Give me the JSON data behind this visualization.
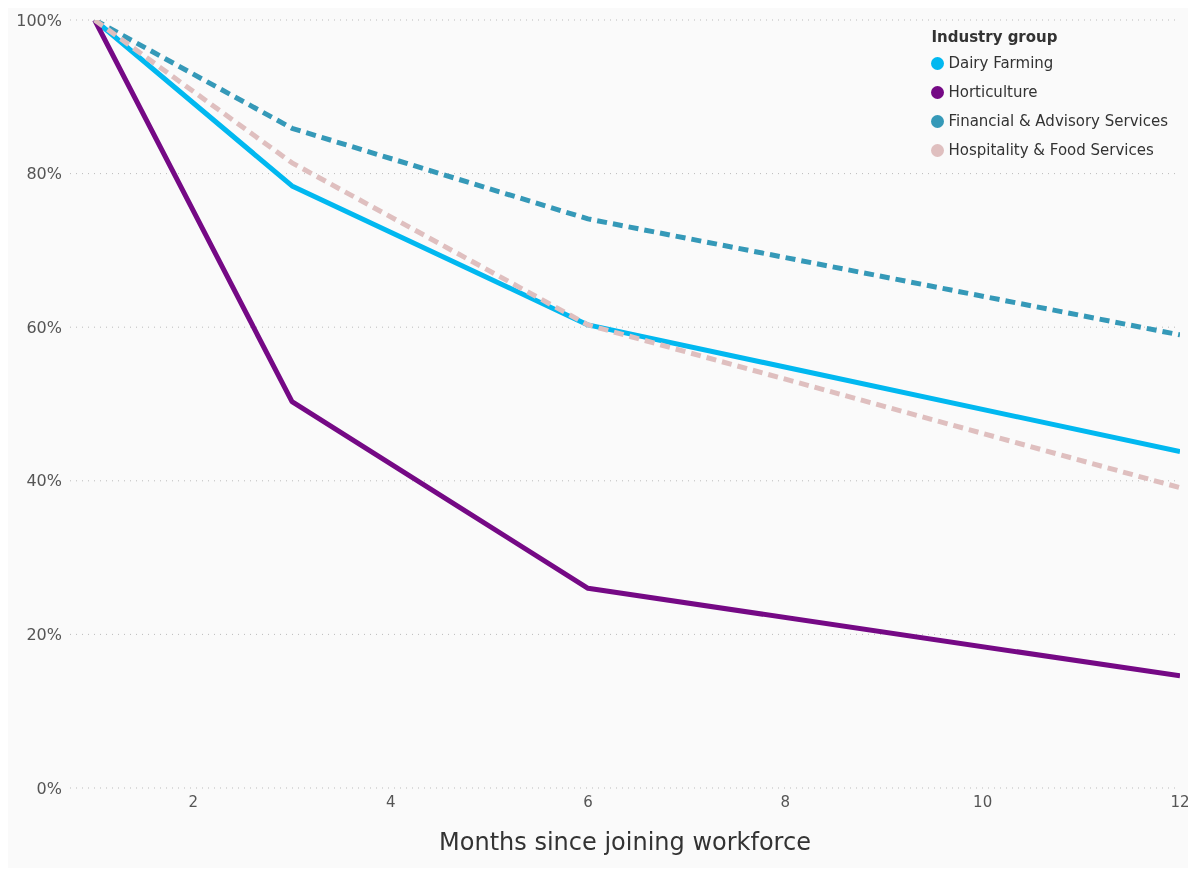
{
  "chart_data": {
    "type": "line",
    "xlabel": "Months since joining workforce",
    "legend_title": "Industry group",
    "legend": "top right",
    "grid": "y",
    "marker": "none",
    "xlim": [
      0.75,
      12
    ],
    "xticks": [
      2,
      4,
      6,
      8,
      10,
      12
    ],
    "ylim": [
      0,
      100
    ],
    "yticks": [
      {
        "value": 0,
        "label": "0%"
      },
      {
        "value": 20,
        "label": "20%"
      },
      {
        "value": 40,
        "label": "40%"
      },
      {
        "value": 60,
        "label": "60%"
      },
      {
        "value": 80,
        "label": "80%"
      },
      {
        "value": 100,
        "label": "100%"
      }
    ],
    "series": [
      {
        "name": "Dairy Farming",
        "color": "#01b8f0",
        "line_style": "solid",
        "x": [
          1,
          3,
          6,
          12
        ],
        "values": [
          100,
          78.4,
          60.3,
          43.8
        ]
      },
      {
        "name": "Horticulture",
        "color": "#750985",
        "line_style": "solid",
        "x": [
          1,
          3,
          6,
          12
        ],
        "values": [
          100,
          50.3,
          26,
          14.6
        ]
      },
      {
        "name": "Financial & Advisory Services",
        "color": "#3599b8",
        "line_style": "dashed",
        "x": [
          1,
          3,
          6,
          12
        ],
        "values": [
          100,
          85.9,
          74.1,
          59
        ]
      },
      {
        "name": "Hospitality & Food Services",
        "color": "#dfbfbf",
        "line_style": "dashed",
        "x": [
          1,
          3,
          6,
          12
        ],
        "values": [
          100,
          81.4,
          60.3,
          39.1
        ]
      }
    ]
  }
}
